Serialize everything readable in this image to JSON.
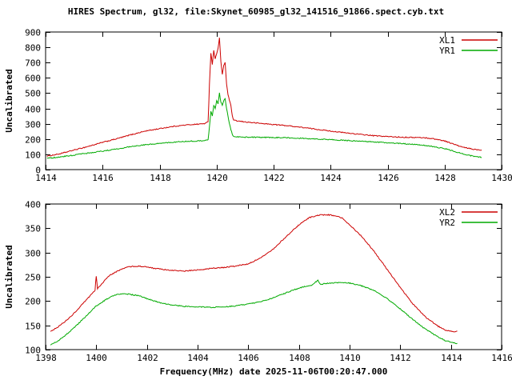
{
  "title": "HIRES Spectrum, gl32, file:Skynet_60985_gl32_141516_91866.spect.cyb.txt",
  "colors": {
    "background": "#ffffff",
    "frame": "#000000",
    "text": "#000000",
    "series_red": "#cc0000",
    "series_green": "#00aa00"
  },
  "chart_data": [
    {
      "type": "line",
      "title": "",
      "xlabel": "",
      "ylabel": "Uncalibrated",
      "xlim": [
        1414,
        1430
      ],
      "ylim": [
        0,
        900
      ],
      "xticks": [
        1414,
        1416,
        1418,
        1420,
        1422,
        1424,
        1426,
        1428,
        1430
      ],
      "yticks": [
        0,
        100,
        200,
        300,
        400,
        500,
        600,
        700,
        800,
        900
      ],
      "grid": false,
      "legend_position": "top-right",
      "series": [
        {
          "name": "XL1",
          "color": "#cc0000",
          "points": [
            [
              1414.05,
              88
            ],
            [
              1414.5,
              103
            ],
            [
              1415,
              128
            ],
            [
              1415.5,
              152
            ],
            [
              1416,
              178
            ],
            [
              1416.5,
              202
            ],
            [
              1417,
              228
            ],
            [
              1417.5,
              252
            ],
            [
              1418,
              268
            ],
            [
              1418.5,
              283
            ],
            [
              1419,
              293
            ],
            [
              1419.4,
              298
            ],
            [
              1419.6,
              302
            ],
            [
              1419.7,
              312
            ],
            [
              1419.75,
              560
            ],
            [
              1419.8,
              762
            ],
            [
              1419.85,
              690
            ],
            [
              1419.9,
              780
            ],
            [
              1419.95,
              722
            ],
            [
              1420,
              760
            ],
            [
              1420.05,
              792
            ],
            [
              1420.1,
              860
            ],
            [
              1420.15,
              705
            ],
            [
              1420.2,
              622
            ],
            [
              1420.25,
              680
            ],
            [
              1420.3,
              702
            ],
            [
              1420.35,
              560
            ],
            [
              1420.4,
              492
            ],
            [
              1420.45,
              452
            ],
            [
              1420.5,
              420
            ],
            [
              1420.55,
              352
            ],
            [
              1420.6,
              322
            ],
            [
              1420.8,
              316
            ],
            [
              1421,
              312
            ],
            [
              1421.5,
              303
            ],
            [
              1422,
              295
            ],
            [
              1422.5,
              287
            ],
            [
              1423,
              276
            ],
            [
              1423.5,
              264
            ],
            [
              1424,
              252
            ],
            [
              1424.5,
              241
            ],
            [
              1425,
              231
            ],
            [
              1425.5,
              222
            ],
            [
              1426,
              216
            ],
            [
              1426.5,
              212
            ],
            [
              1427,
              210
            ],
            [
              1427.3,
              208
            ],
            [
              1427.6,
              202
            ],
            [
              1428,
              188
            ],
            [
              1428.3,
              168
            ],
            [
              1428.6,
              148
            ],
            [
              1429,
              133
            ],
            [
              1429.3,
              128
            ]
          ]
        },
        {
          "name": "YR1",
          "color": "#00aa00",
          "points": [
            [
              1414.05,
              73
            ],
            [
              1414.5,
              83
            ],
            [
              1415,
              95
            ],
            [
              1415.5,
              108
            ],
            [
              1416,
              121
            ],
            [
              1416.5,
              135
            ],
            [
              1417,
              150
            ],
            [
              1417.5,
              163
            ],
            [
              1418,
              172
            ],
            [
              1418.5,
              180
            ],
            [
              1419,
              185
            ],
            [
              1419.4,
              188
            ],
            [
              1419.6,
              191
            ],
            [
              1419.7,
              196
            ],
            [
              1419.75,
              282
            ],
            [
              1419.8,
              380
            ],
            [
              1419.85,
              352
            ],
            [
              1419.9,
              420
            ],
            [
              1419.95,
              402
            ],
            [
              1420,
              450
            ],
            [
              1420.05,
              432
            ],
            [
              1420.1,
              500
            ],
            [
              1420.15,
              442
            ],
            [
              1420.2,
              420
            ],
            [
              1420.25,
              452
            ],
            [
              1420.3,
              465
            ],
            [
              1420.35,
              400
            ],
            [
              1420.4,
              350
            ],
            [
              1420.45,
              300
            ],
            [
              1420.5,
              262
            ],
            [
              1420.55,
              232
            ],
            [
              1420.6,
              216
            ],
            [
              1421,
              212
            ],
            [
              1421.5,
              211
            ],
            [
              1422,
              210
            ],
            [
              1422.5,
              208
            ],
            [
              1423,
              205
            ],
            [
              1423.5,
              200
            ],
            [
              1424,
              196
            ],
            [
              1424.5,
              191
            ],
            [
              1425,
              186
            ],
            [
              1425.5,
              181
            ],
            [
              1426,
              176
            ],
            [
              1426.5,
              170
            ],
            [
              1427,
              163
            ],
            [
              1427.3,
              158
            ],
            [
              1427.6,
              150
            ],
            [
              1428,
              138
            ],
            [
              1428.3,
              122
            ],
            [
              1428.6,
              105
            ],
            [
              1429,
              88
            ],
            [
              1429.3,
              80
            ]
          ]
        }
      ]
    },
    {
      "type": "line",
      "title": "",
      "xlabel": "Frequency(MHz) date 2025-11-06T00:20:47.000",
      "ylabel": "Uncalibrated",
      "xlim": [
        1398,
        1416
      ],
      "ylim": [
        100,
        400
      ],
      "xticks": [
        1398,
        1400,
        1402,
        1404,
        1406,
        1408,
        1410,
        1412,
        1414,
        1416
      ],
      "yticks": [
        100,
        150,
        200,
        250,
        300,
        350,
        400
      ],
      "grid": false,
      "legend_position": "top-right",
      "series": [
        {
          "name": "XL2",
          "color": "#cc0000",
          "points": [
            [
              1398.2,
              138
            ],
            [
              1398.5,
              147
            ],
            [
              1399,
              168
            ],
            [
              1399.5,
              196
            ],
            [
              1399.95,
              222
            ],
            [
              1400,
              252
            ],
            [
              1400.05,
              226
            ],
            [
              1400.5,
              252
            ],
            [
              1401,
              266
            ],
            [
              1401.3,
              271
            ],
            [
              1401.7,
              272
            ],
            [
              1402,
              270
            ],
            [
              1402.5,
              266
            ],
            [
              1403,
              263
            ],
            [
              1403.5,
              262
            ],
            [
              1404,
              264
            ],
            [
              1404.5,
              267
            ],
            [
              1405,
              269
            ],
            [
              1405.5,
              272
            ],
            [
              1406,
              277
            ],
            [
              1406.5,
              289
            ],
            [
              1407,
              308
            ],
            [
              1407.5,
              333
            ],
            [
              1408,
              357
            ],
            [
              1408.4,
              372
            ],
            [
              1408.8,
              377
            ],
            [
              1409.1,
              378
            ],
            [
              1409.4,
              376
            ],
            [
              1409.7,
              371
            ],
            [
              1410,
              357
            ],
            [
              1410.5,
              332
            ],
            [
              1411,
              300
            ],
            [
              1411.5,
              264
            ],
            [
              1412,
              228
            ],
            [
              1412.5,
              194
            ],
            [
              1413,
              167
            ],
            [
              1413.5,
              148
            ],
            [
              1413.8,
              140
            ],
            [
              1414.1,
              137
            ],
            [
              1414.25,
              138
            ]
          ]
        },
        {
          "name": "YR2",
          "color": "#00aa00",
          "points": [
            [
              1398.2,
              110
            ],
            [
              1398.5,
              118
            ],
            [
              1399,
              139
            ],
            [
              1399.5,
              164
            ],
            [
              1400,
              190
            ],
            [
              1400.5,
              207
            ],
            [
              1400.8,
              213
            ],
            [
              1401,
              215
            ],
            [
              1401.3,
              214
            ],
            [
              1401.7,
              211
            ],
            [
              1402,
              205
            ],
            [
              1402.5,
              197
            ],
            [
              1403,
              192
            ],
            [
              1403.5,
              189
            ],
            [
              1404,
              188
            ],
            [
              1404.5,
              187
            ],
            [
              1405,
              188
            ],
            [
              1405.5,
              190
            ],
            [
              1406,
              194
            ],
            [
              1406.5,
              199
            ],
            [
              1407,
              207
            ],
            [
              1407.5,
              217
            ],
            [
              1408,
              227
            ],
            [
              1408.5,
              233
            ],
            [
              1408.75,
              243
            ],
            [
              1408.85,
              234
            ],
            [
              1409,
              236
            ],
            [
              1409.5,
              238
            ],
            [
              1409.8,
              238
            ],
            [
              1410,
              237
            ],
            [
              1410.5,
              231
            ],
            [
              1411,
              221
            ],
            [
              1411.5,
              204
            ],
            [
              1412,
              184
            ],
            [
              1412.5,
              162
            ],
            [
              1413,
              142
            ],
            [
              1413.5,
              126
            ],
            [
              1413.8,
              118
            ],
            [
              1414.1,
              114
            ],
            [
              1414.25,
              113
            ]
          ]
        }
      ]
    }
  ]
}
